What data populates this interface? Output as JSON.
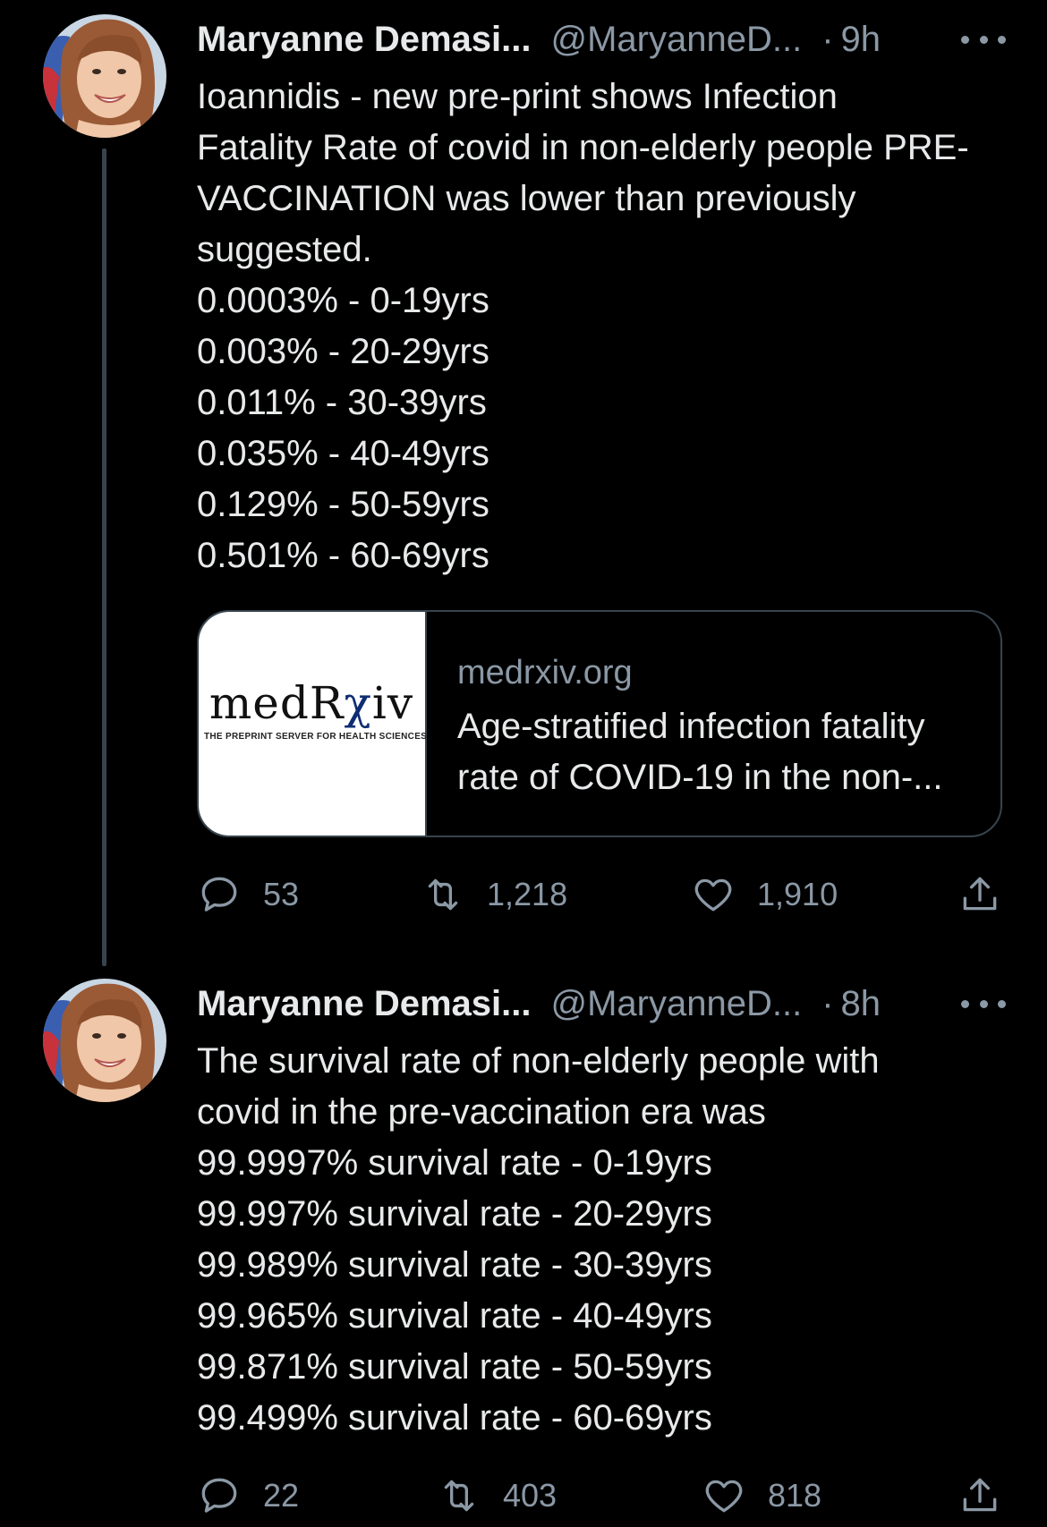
{
  "tweets": [
    {
      "author": {
        "name": "Maryanne Demasi...",
        "handle": "@MaryanneD...",
        "dot": "·",
        "time": "9h"
      },
      "text_lines": [
        "Ioannidis - new pre-print shows Infection",
        "Fatality Rate of covid in non-elderly people PRE-",
        "VACCINATION was lower than previously",
        "suggested.",
        "0.0003% - 0-19yrs",
        "0.003% - 20-29yrs",
        "0.011% - 30-39yrs",
        "0.035% - 40-49yrs",
        "0.129% - 50-59yrs",
        "0.501% - 60-69yrs"
      ],
      "card": {
        "logo_main": "medR",
        "logo_rx": "χ",
        "logo_end": "iv",
        "logo_tagline": "THE PREPRINT SERVER FOR HEALTH SCIENCES",
        "domain": "medrxiv.org",
        "title_line1": "Age-stratified infection fatality",
        "title_line2": "rate of COVID-19 in the non-..."
      },
      "counts": {
        "replies": "53",
        "retweets": "1,218",
        "likes": "1,910"
      }
    },
    {
      "author": {
        "name": "Maryanne Demasi...",
        "handle": "@MaryanneD...",
        "dot": "·",
        "time": "8h"
      },
      "text_lines": [
        "The survival rate of non-elderly people with",
        "covid in the pre-vaccination era was",
        "99.9997% survival rate - 0-19yrs",
        "99.997% survival rate - 20-29yrs",
        "99.989% survival rate - 30-39yrs",
        "99.965% survival rate - 40-49yrs",
        "99.871% survival rate - 50-59yrs",
        "99.499% survival rate - 60-69yrs"
      ],
      "counts": {
        "replies": "22",
        "retweets": "403",
        "likes": "818"
      }
    }
  ],
  "icons": {
    "reply": "speech-bubble-icon",
    "retweet": "retweet-arrows-icon",
    "like": "heart-icon",
    "share": "share-upload-icon",
    "more": "more-dots-icon"
  },
  "colors": {
    "background": "#000000",
    "text": "#e7e9ea",
    "muted": "#8b98a5",
    "border": "#38444d"
  }
}
